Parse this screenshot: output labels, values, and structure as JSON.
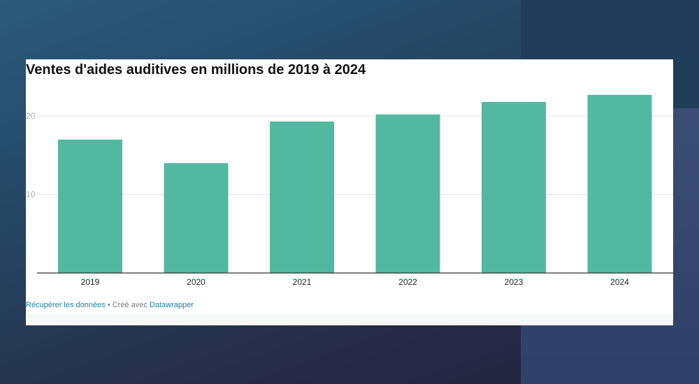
{
  "colors": {
    "bar": "#52b8a0",
    "gridline": "#e2e2e2",
    "baseline": "#333333",
    "tick_label": "#aaaaaa",
    "link": "#1d81a2",
    "footer_text": "#777777"
  },
  "footer": {
    "data_link": "Récupérer les données",
    "separator": " • ",
    "created_with": "Créé avec ",
    "tool_link": "Datawrapper"
  },
  "chart_data": {
    "type": "bar",
    "title": "Ventes d'aides auditives en millions de 2019 à 2024",
    "xlabel": "",
    "ylabel": "",
    "categories": [
      "2019",
      "2020",
      "2021",
      "2022",
      "2023",
      "2024"
    ],
    "values": [
      17.0,
      14.0,
      19.3,
      20.2,
      21.8,
      22.7
    ],
    "yticks": [
      10,
      20
    ],
    "ylim": [
      0,
      25
    ],
    "grid": true,
    "legend": "none"
  }
}
